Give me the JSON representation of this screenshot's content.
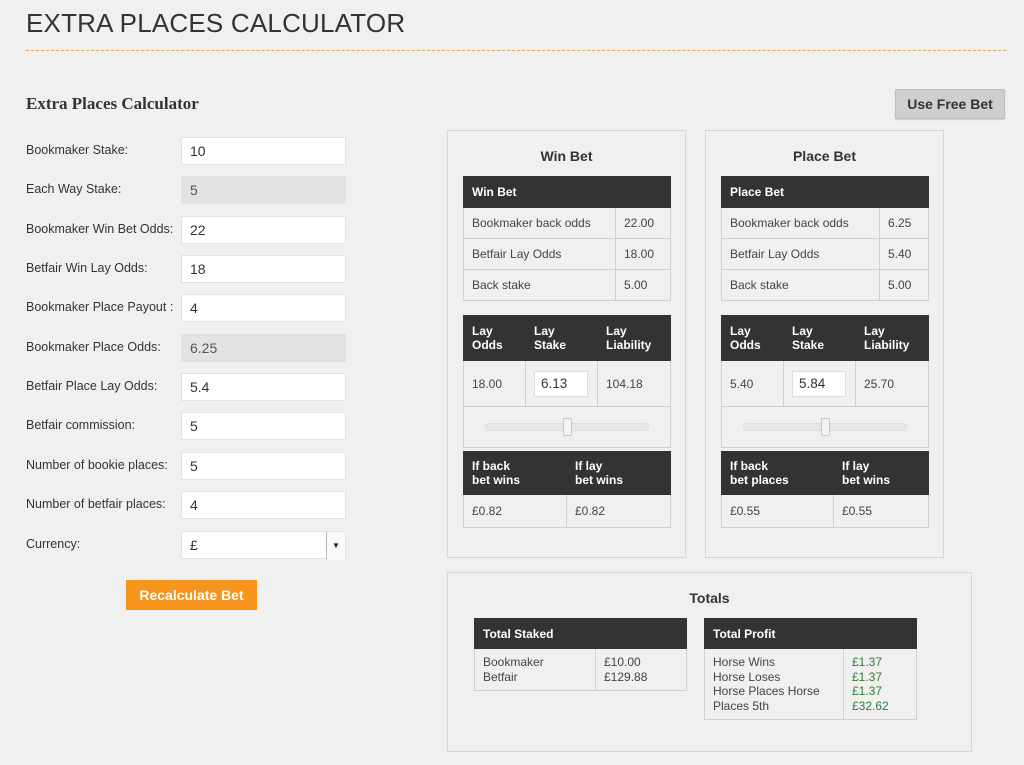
{
  "header": {
    "title": "EXTRA PLACES CALCULATOR"
  },
  "calculator": {
    "title": "Extra Places Calculator",
    "use_free_bet_label": "Use Free Bet",
    "recalculate_label": "Recalculate Bet",
    "fields": [
      {
        "label": "Bookmaker Stake:",
        "value": "10",
        "readonly": false
      },
      {
        "label": "Each Way Stake:",
        "value": "5",
        "readonly": true
      },
      {
        "label": "Bookmaker Win Bet Odds:",
        "value": "22",
        "readonly": false
      },
      {
        "label": "Betfair Win Lay Odds:",
        "value": "18",
        "readonly": false
      },
      {
        "label": "Bookmaker Place Payout :",
        "value": "4",
        "readonly": false
      },
      {
        "label": "Bookmaker Place Odds:",
        "value": "6.25",
        "readonly": true
      },
      {
        "label": "Betfair Place Lay Odds:",
        "value": "5.4",
        "readonly": false
      },
      {
        "label": "Betfair commission:",
        "value": "5",
        "readonly": false
      },
      {
        "label": "Number of bookie places:",
        "value": "5",
        "readonly": false
      },
      {
        "label": "Number of betfair places:",
        "value": "4",
        "readonly": false
      }
    ],
    "currency": {
      "label": "Currency:",
      "value": "£"
    }
  },
  "win_bet": {
    "title": "Win Bet",
    "table_header": "Win Bet",
    "rows": [
      {
        "label": "Bookmaker back odds",
        "value": "22.00"
      },
      {
        "label": "Betfair Lay Odds",
        "value": "18.00"
      },
      {
        "label": "Back stake",
        "value": "5.00"
      }
    ],
    "lay_headers": {
      "odds": "Lay\nOdds",
      "stake": "Lay Stake",
      "liability": "Lay\nLiability"
    },
    "lay_odds": "18.00",
    "lay_stake": "6.13",
    "lay_liability": "104.18",
    "slider_level": 0.5,
    "outcome_headers": {
      "a": "If back\nbet wins",
      "b": "If lay\nbet wins"
    },
    "outcome_values": {
      "a": "£0.82",
      "b": "£0.82"
    }
  },
  "place_bet": {
    "title": "Place Bet",
    "table_header": "Place Bet",
    "rows": [
      {
        "label": "Bookmaker back odds",
        "value": "6.25"
      },
      {
        "label": "Betfair Lay Odds",
        "value": "5.40"
      },
      {
        "label": "Back stake",
        "value": "5.00"
      }
    ],
    "lay_headers": {
      "odds": "Lay\nOdds",
      "stake": "Lay Stake",
      "liability": "Lay\nLiability"
    },
    "lay_odds": "5.40",
    "lay_stake": "5.84",
    "lay_liability": "25.70",
    "slider_level": 0.5,
    "outcome_headers": {
      "a": "If back\nbet places",
      "b": "If lay\nbet wins"
    },
    "outcome_values": {
      "a": "£0.55",
      "b": "£0.55"
    }
  },
  "totals": {
    "title": "Totals",
    "staked_header": "Total Staked",
    "staked_labels": [
      "Bookmaker",
      "Betfair"
    ],
    "staked_values": [
      "£10.00",
      "£129.88"
    ],
    "profit_header": "Total Profit",
    "profit_labels": [
      "Horse Wins",
      "Horse Loses",
      "Horse Places Horse",
      "Places 5th"
    ],
    "profit_values": [
      "£1.37",
      "£1.37",
      "£1.37",
      "£32.62"
    ],
    "profit_color": "#2e7d32"
  },
  "colors": {
    "accent": "#f7941d",
    "header_bg": "#333333",
    "background": "#f0f0f0"
  }
}
